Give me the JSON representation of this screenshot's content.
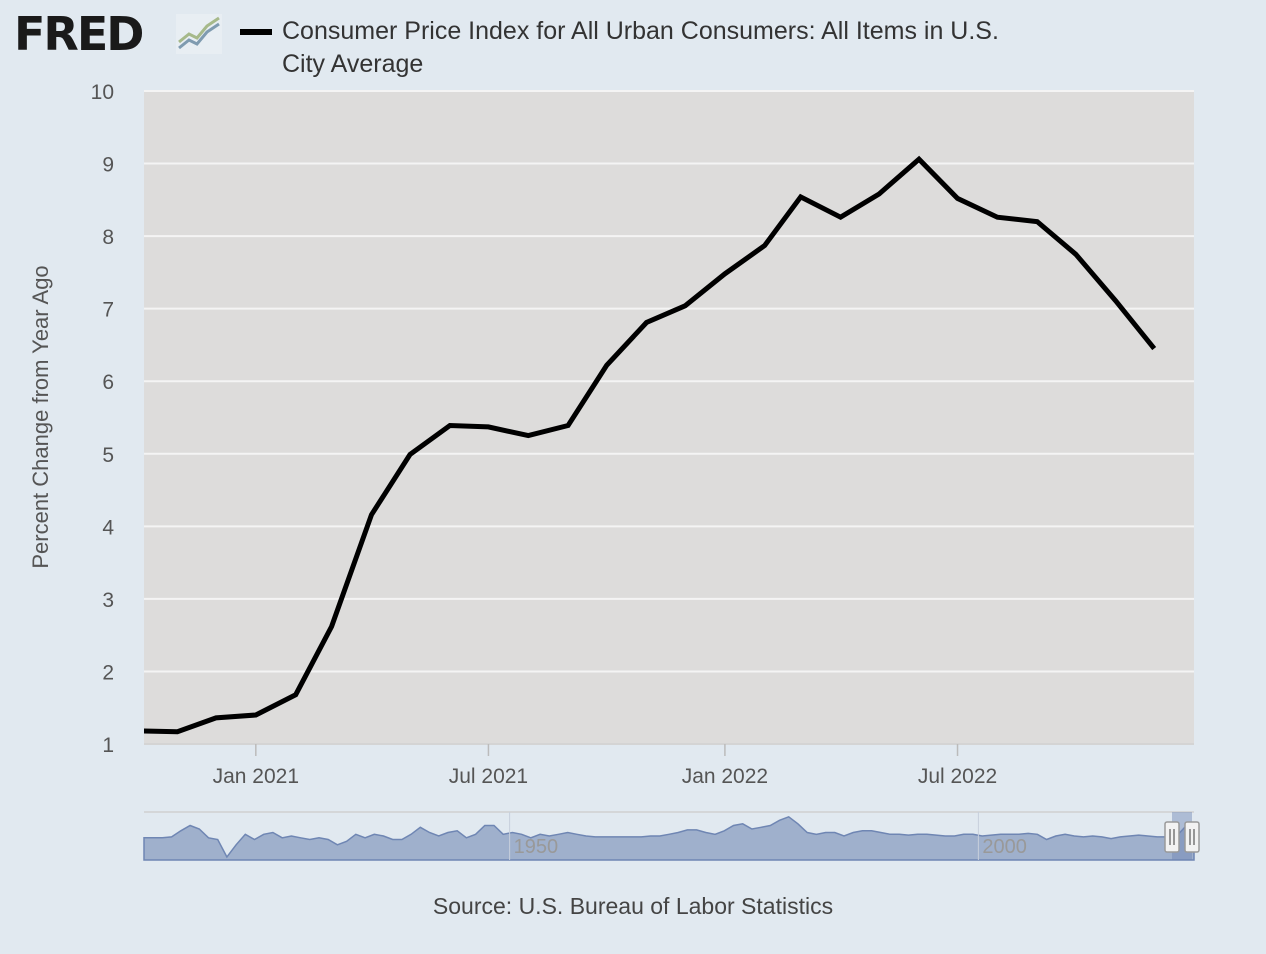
{
  "header": {
    "logo_text": "FRED",
    "logo_icon": "trend-lines-icon",
    "title": "Consumer Price Index for All Urban Consumers: All Items in U.S. City Average"
  },
  "chart_data": {
    "type": "line",
    "title": "Consumer Price Index for All Urban Consumers: All Items in U.S. City Average",
    "xlabel": "",
    "ylabel": "Percent Change from Year Ago",
    "ylim": [
      1,
      10
    ],
    "yticks": [
      "1",
      "2",
      "3",
      "4",
      "5",
      "6",
      "7",
      "8",
      "9",
      "10"
    ],
    "xlim": [
      "2020-10-06",
      "2023-01-01"
    ],
    "xticks": [
      {
        "label": "Jan 2021",
        "date": "2021-01-01"
      },
      {
        "label": "Jul 2021",
        "date": "2021-07-01"
      },
      {
        "label": "Jan 2022",
        "date": "2022-01-01"
      },
      {
        "label": "Jul 2022",
        "date": "2022-07-01"
      }
    ],
    "grid": true,
    "series": [
      {
        "name": "Consumer Price Index for All Urban Consumers: All Items in U.S. City Average",
        "color": "#000000",
        "points": [
          {
            "x": "2020-10-01",
            "y": 1.18
          },
          {
            "x": "2020-11-01",
            "y": 1.17
          },
          {
            "x": "2020-12-01",
            "y": 1.36
          },
          {
            "x": "2021-01-01",
            "y": 1.4
          },
          {
            "x": "2021-02-01",
            "y": 1.68
          },
          {
            "x": "2021-03-01",
            "y": 2.62
          },
          {
            "x": "2021-04-01",
            "y": 4.16
          },
          {
            "x": "2021-05-01",
            "y": 4.99
          },
          {
            "x": "2021-06-01",
            "y": 5.39
          },
          {
            "x": "2021-07-01",
            "y": 5.37
          },
          {
            "x": "2021-08-01",
            "y": 5.25
          },
          {
            "x": "2021-09-01",
            "y": 5.39
          },
          {
            "x": "2021-10-01",
            "y": 6.22
          },
          {
            "x": "2021-11-01",
            "y": 6.81
          },
          {
            "x": "2021-12-01",
            "y": 7.04
          },
          {
            "x": "2022-01-01",
            "y": 7.48
          },
          {
            "x": "2022-02-01",
            "y": 7.87
          },
          {
            "x": "2022-03-01",
            "y": 8.54
          },
          {
            "x": "2022-04-01",
            "y": 8.26
          },
          {
            "x": "2022-05-01",
            "y": 8.58
          },
          {
            "x": "2022-06-01",
            "y": 9.06
          },
          {
            "x": "2022-07-01",
            "y": 8.52
          },
          {
            "x": "2022-08-01",
            "y": 8.26
          },
          {
            "x": "2022-09-01",
            "y": 8.2
          },
          {
            "x": "2022-10-01",
            "y": 7.75
          },
          {
            "x": "2022-11-01",
            "y": 7.11
          },
          {
            "x": "2022-12-01",
            "y": 6.45
          }
        ]
      }
    ]
  },
  "navigator": {
    "labels": [
      {
        "text": "1950",
        "year": 1950
      },
      {
        "text": "2000",
        "year": 2000
      }
    ],
    "range": [
      1911,
      2023
    ],
    "overview_values": [
      1,
      1,
      1,
      1.5,
      5,
      8,
      6,
      1,
      0,
      -10,
      -3,
      3,
      0,
      3,
      4,
      1,
      2,
      1,
      0,
      1,
      0,
      -3,
      -1,
      3,
      1,
      3,
      2,
      0,
      0,
      3,
      7,
      4,
      2,
      4,
      5,
      1,
      3,
      8,
      8,
      3,
      4,
      3,
      1,
      3,
      2,
      3,
      4,
      3,
      2,
      1.5,
      1.5,
      1.5,
      1.5,
      1.5,
      1.5,
      2,
      2,
      3,
      4,
      5.5,
      5.5,
      4,
      3,
      5,
      8,
      9,
      6,
      7,
      8,
      11,
      13,
      9,
      4,
      3,
      4,
      4,
      2,
      4,
      5,
      5,
      4,
      3,
      3,
      2.5,
      3,
      3,
      2.5,
      2,
      2,
      3,
      3,
      2,
      2.5,
      3,
      3,
      3,
      3.5,
      3,
      0,
      2,
      3,
      2,
      1.5,
      2,
      1.5,
      0.5,
      1.5,
      2,
      2.5,
      2,
      1.5,
      1.5,
      1.4,
      7,
      6.5
    ],
    "selected_range_label": ""
  },
  "source": "Source: U.S. Bureau of Labor Statistics"
}
